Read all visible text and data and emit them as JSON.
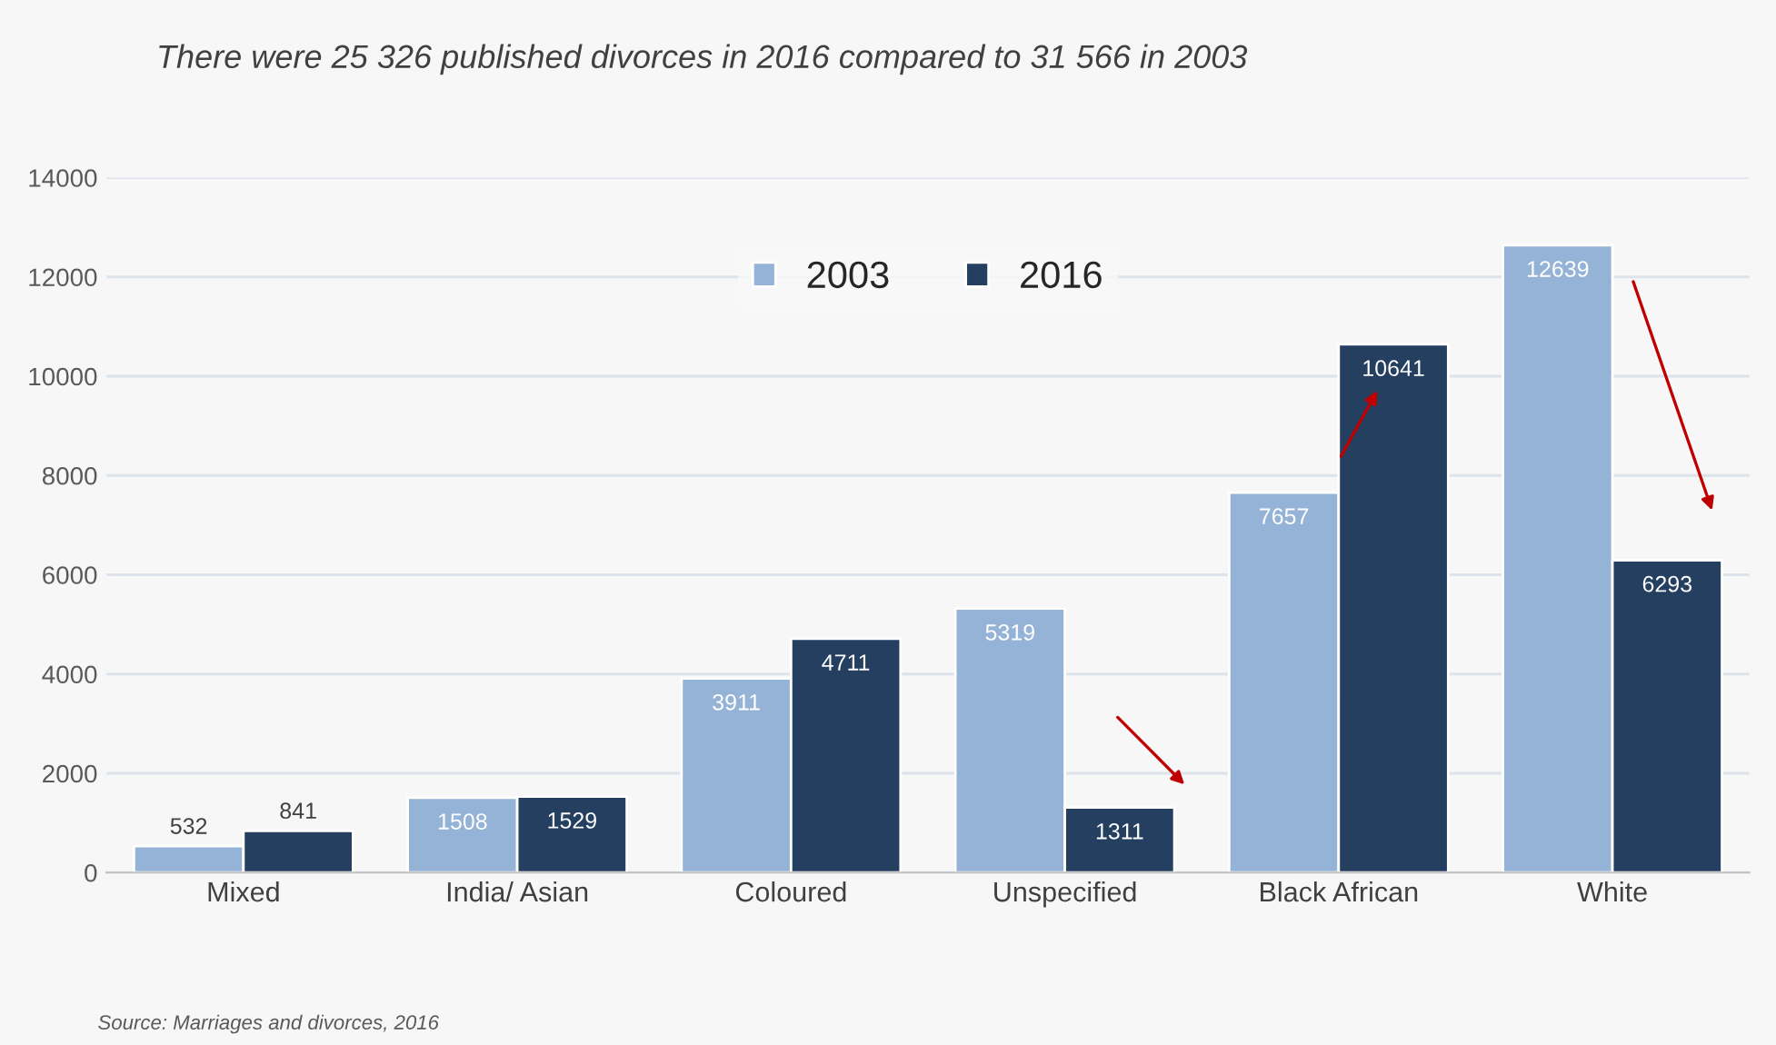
{
  "chart_data": {
    "type": "bar",
    "title": "There were 25 326 published divorces in 2016 compared to 31 566 in 2003",
    "categories": [
      "Mixed",
      "India/ Asian",
      "Coloured",
      "Unspecified",
      "Black African",
      "White"
    ],
    "series": [
      {
        "name": "2003",
        "color": "#95b3d7",
        "values": [
          532,
          1508,
          3911,
          5319,
          7657,
          12639
        ]
      },
      {
        "name": "2016",
        "color": "#243f60",
        "values": [
          841,
          1529,
          4711,
          1311,
          10641,
          6293
        ]
      }
    ],
    "ylim": [
      0,
      14000
    ],
    "yticks": [
      0,
      2000,
      4000,
      6000,
      8000,
      10000,
      12000,
      14000
    ],
    "grid": "y",
    "legend": "top",
    "data_labels": true,
    "annotations": [
      "Source: Marriages and divorces, 2016"
    ]
  }
}
